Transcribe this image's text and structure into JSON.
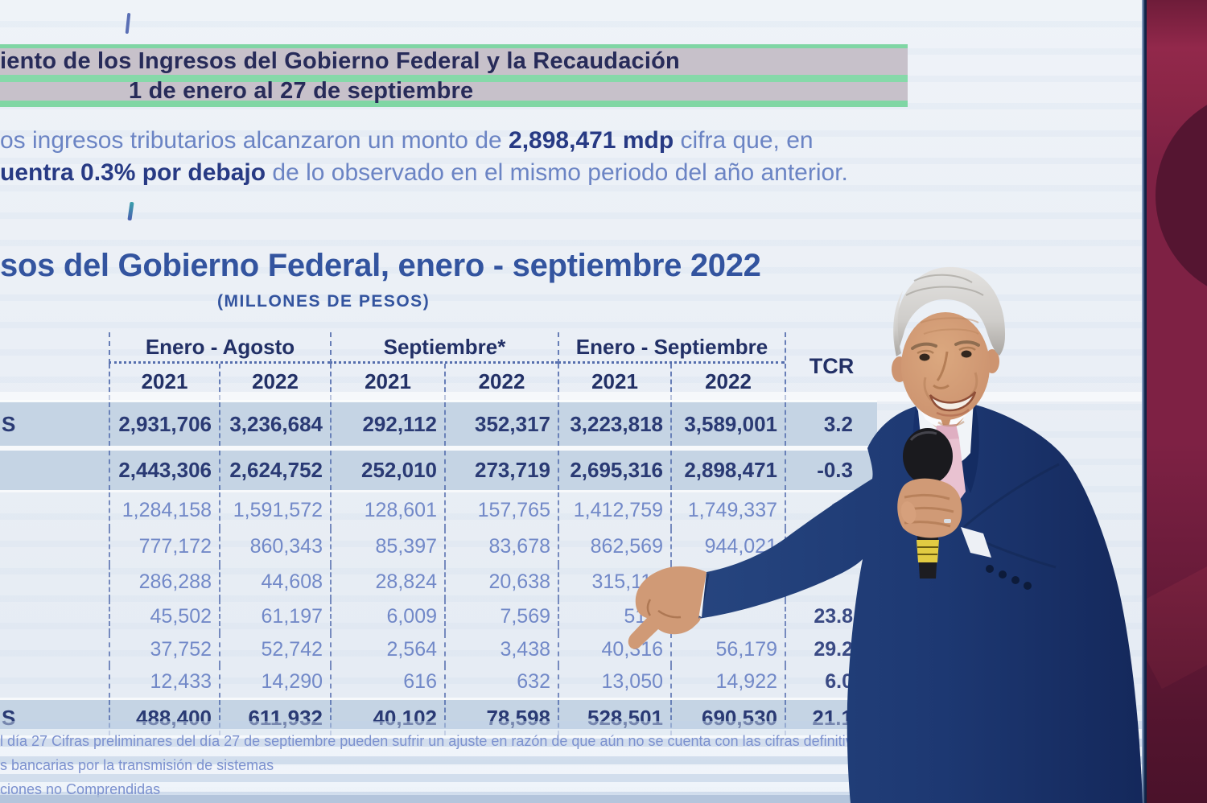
{
  "slide": {
    "header": {
      "line1": "iento de los Ingresos del Gobierno Federal y la Recaudación",
      "line2": "1 de enero al 27 de septiembre"
    },
    "paragraph": {
      "line1_pre": "os ingresos tributarios alcanzaron un monto de ",
      "line1_bold": "2,898,471 mdp",
      "line1_post": " cifra que, en",
      "line2_bold": "uentra 0.3% por debajo",
      "line2_post": " de lo observado en el mismo periodo del año anterior."
    },
    "table_title": "sos del Gobierno Federal, enero - septiembre 2022",
    "table_subtitle": "(MILLONES DE PESOS)",
    "table": {
      "col_groups": [
        "Enero - Agosto",
        "Septiembre*",
        "Enero - Septiembre"
      ],
      "tcr_label": "TCR",
      "years": [
        "2021",
        "2022",
        "2021",
        "2022",
        "2021",
        "2022"
      ],
      "rows": [
        {
          "label": "S",
          "bold": true,
          "shaded": true,
          "values": [
            "2,931,706",
            "3,236,684",
            "292,112",
            "352,317",
            "3,223,818",
            "3,589,001"
          ],
          "tcr": "3.2"
        },
        {
          "label": "",
          "bold": true,
          "shaded": true,
          "values": [
            "2,443,306",
            "2,624,752",
            "252,010",
            "273,719",
            "2,695,316",
            "2,898,471"
          ],
          "tcr": "-0.3"
        },
        {
          "label": "",
          "bold": false,
          "shaded": false,
          "values": [
            "1,284,158",
            "1,591,572",
            "128,601",
            "157,765",
            "1,412,759",
            "1,749,337"
          ],
          "tcr": "14"
        },
        {
          "label": "",
          "bold": false,
          "shaded": false,
          "values": [
            "777,172",
            "860,343",
            "85,397",
            "83,678",
            "862,569",
            "944,021"
          ],
          "tcr": ""
        },
        {
          "label": "",
          "bold": false,
          "shaded": false,
          "values": [
            "286,288",
            "44,608",
            "28,824",
            "20,638",
            "315,112",
            ""
          ],
          "tcr": ""
        },
        {
          "label": "",
          "bold": false,
          "shaded": false,
          "values": [
            "45,502",
            "61,197",
            "6,009",
            "7,569",
            "51,3",
            ""
          ],
          "tcr": "23.8"
        },
        {
          "label": "",
          "bold": false,
          "shaded": false,
          "values": [
            "37,752",
            "52,742",
            "2,564",
            "3,438",
            "40,316",
            "56,179"
          ],
          "tcr": "29.2"
        },
        {
          "label": "",
          "bold": false,
          "shaded": false,
          "values": [
            "12,433",
            "14,290",
            "616",
            "632",
            "13,050",
            "14,922"
          ],
          "tcr": "6.0"
        },
        {
          "label": "S",
          "bold": true,
          "shaded": true,
          "values": [
            "488,400",
            "611,932",
            "40,102",
            "78,598",
            "528,501",
            "690,530"
          ],
          "tcr": "21.1"
        }
      ]
    },
    "footnotes": [
      "l día 27 Cifras preliminares del día 27 de septiembre pueden sufrir un ajuste en razón de que aún no se cuenta con las cifras definitivas",
      "s bancarias por la transmisión de sistemas",
      "ciones no Comprendidas"
    ]
  },
  "scene": {
    "presenter": "man in navy suit holding microphone, pointing at table",
    "setting": "projection screen with maroon stage backdrop at right"
  },
  "colors": {
    "screen_bg": "#edf1f6",
    "header_band_bg": "#c7c1ca",
    "header_band_green": "#7fd6a4",
    "header_text": "#272b59",
    "intro_text": "#6b84c4",
    "intro_bold": "#273a84",
    "table_title": "#33549f",
    "table_header_text": "#223066",
    "value_bold": "#2a3a74",
    "value_light": "#7289c8",
    "tcr_text": "#32427e",
    "row_shaded_bg": "#c5d4e4",
    "table_line": "#314e9c",
    "footnote_text": "#7c91cf",
    "backdrop_base": "#7e2144",
    "backdrop_dark": "#551531",
    "backdrop_light": "#9c2a4e",
    "suit": "#1d3872",
    "shirt": "#f1f4f8",
    "tie": "#e9c2d1",
    "skin": "#d09a76",
    "hair": "#d5d3d0",
    "mic_body": "#1d1d21",
    "mic_band": "#e2cb42"
  }
}
